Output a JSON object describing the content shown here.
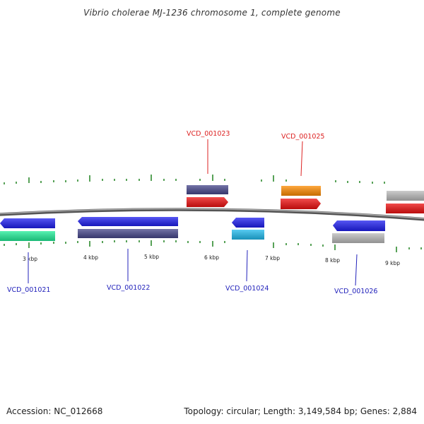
{
  "title": "Vibrio cholerae MJ-1236 chromosome 1, complete genome",
  "footer": {
    "accession": "Accession: NC_012668",
    "summary": "Topology: circular; Length: 3,149,584 bp; Genes: 2,884"
  },
  "scale_labels": [
    "3 kbp",
    "4 kbp",
    "5 kbp",
    "6 kbp",
    "7 kbp",
    "8 kbp",
    "9 kbp"
  ],
  "gene_labels": {
    "top": [
      "VCD_001023",
      "VCD_001025"
    ],
    "bottom": [
      "VCD_001021",
      "VCD_001022",
      "VCD_001024",
      "VCD_001026"
    ]
  },
  "colors": {
    "forward_label": "#dd2222",
    "reverse_label": "#2222bb",
    "backbone": "#888888",
    "tick": "#2e8b2e",
    "blue": "#1f1ff0",
    "navy": "#47478c",
    "red": "#ee1111",
    "orange": "#ff8c00",
    "cyan": "#22bbee",
    "mint": "#22ee99",
    "grey": "#bbbbbb"
  }
}
